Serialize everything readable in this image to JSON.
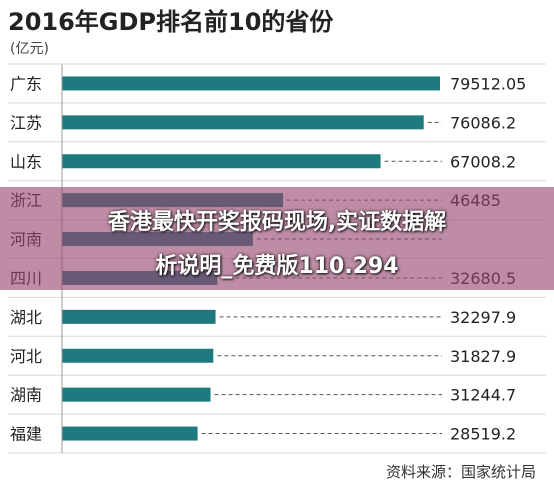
{
  "chart_data": {
    "type": "bar",
    "orientation": "horizontal",
    "title": "2016年GDP排名前10的省份",
    "unit": "(亿元)",
    "categories": [
      "广东",
      "江苏",
      "山东",
      "浙江",
      "河南",
      "四川",
      "湖北",
      "河北",
      "湖南",
      "福建"
    ],
    "values": [
      79512.05,
      76086.2,
      67008.2,
      46485,
      40160,
      32680.5,
      32297.9,
      31827.9,
      31244.7,
      28519.2
    ],
    "value_labels": [
      "79512.05",
      "76086.2",
      "67008.2",
      "46485",
      "",
      "32680.5",
      "32297.9",
      "31827.9",
      "31244.7",
      "28519.2"
    ],
    "xlim": [
      0,
      79512.05
    ],
    "bar_color": "#1f7a80",
    "source": "资料来源：国家统计局"
  },
  "overlay": {
    "line1": "香港最快开奖报码现场,实证数据解",
    "line2": "析说明_免费版110.294"
  }
}
